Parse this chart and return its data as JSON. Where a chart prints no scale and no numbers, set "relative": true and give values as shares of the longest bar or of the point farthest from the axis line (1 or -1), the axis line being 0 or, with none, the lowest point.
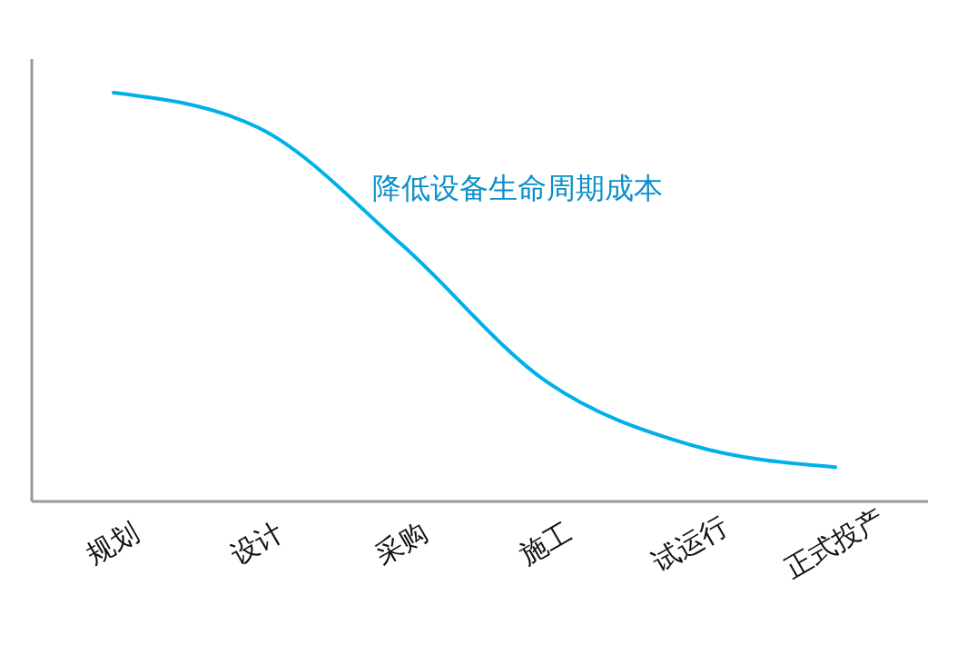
{
  "chart_data": {
    "type": "line",
    "relative": true,
    "categories": [
      "规划",
      "设计",
      "采购",
      "施工",
      "试运行",
      "正式投产"
    ],
    "series": [
      {
        "color": "#00b0e8",
        "values": [
          1,
          0.915,
          0.627,
          0.293,
          0.138,
          0.084
        ]
      }
    ],
    "annotations": [
      "降低设备生命周期成本"
    ],
    "marker": "none",
    "line_style": "solid"
  }
}
